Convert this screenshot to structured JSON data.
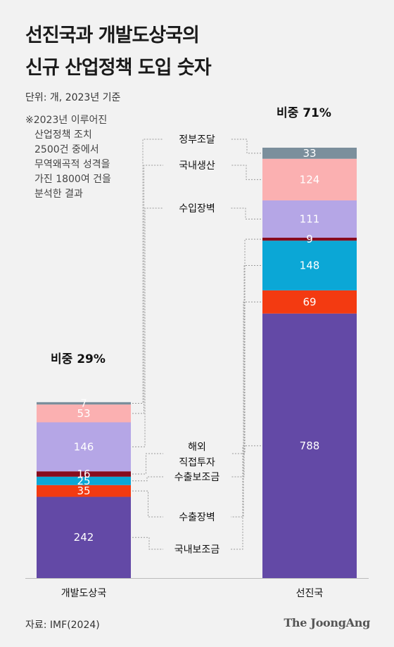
{
  "title_line1": "선진국과 개발도상국의",
  "title_line2": "신규 산업정책 도입 숫자",
  "unit_note": "단위: 개, 2023년 기준",
  "footnote": [
    "※2023년 이루어진",
    "산업정책 조치",
    "2500건 중에서",
    "무역왜곡적 성격을",
    "가진 1800여 건을",
    "분석한 결과"
  ],
  "source": "자료: IMF(2024)",
  "brand": "The JoongAng",
  "chart_data": {
    "type": "bar",
    "stacked": true,
    "categories": [
      "개발도상국",
      "선진국"
    ],
    "shares": [
      "비중 29%",
      "비중 71%"
    ],
    "series": [
      {
        "name": "국내보조금",
        "color": "#6349a6",
        "values": [
          242,
          788
        ]
      },
      {
        "name": "수출장벽",
        "color": "#f33a11",
        "values": [
          35,
          69
        ]
      },
      {
        "name": "수출보조금",
        "color": "#0ba7d6",
        "values": [
          25,
          148
        ]
      },
      {
        "name": "해외 직접투자",
        "color": "#870c1e",
        "values": [
          16,
          9
        ]
      },
      {
        "name": "수입장벽",
        "color": "#b5a6e6",
        "values": [
          146,
          111
        ]
      },
      {
        "name": "국내생산",
        "color": "#fbb0b1",
        "values": [
          53,
          124
        ]
      },
      {
        "name": "정부조달",
        "color": "#7b8f9c",
        "values": [
          7,
          33
        ]
      }
    ],
    "series_label_lines": [
      [
        "국내보조금"
      ],
      [
        "수출장벽"
      ],
      [
        "수출보조금"
      ],
      [
        "해외",
        "직접투자"
      ],
      [
        "수입장벽"
      ],
      [
        "국내생산"
      ],
      [
        "정부조달"
      ]
    ],
    "value_labels": [
      [
        "242",
        "788"
      ],
      [
        "35",
        "69"
      ],
      [
        "25",
        "148"
      ],
      [
        "16",
        "9"
      ],
      [
        "146",
        "111"
      ],
      [
        "53",
        "124"
      ],
      [
        "7",
        "33"
      ]
    ]
  }
}
